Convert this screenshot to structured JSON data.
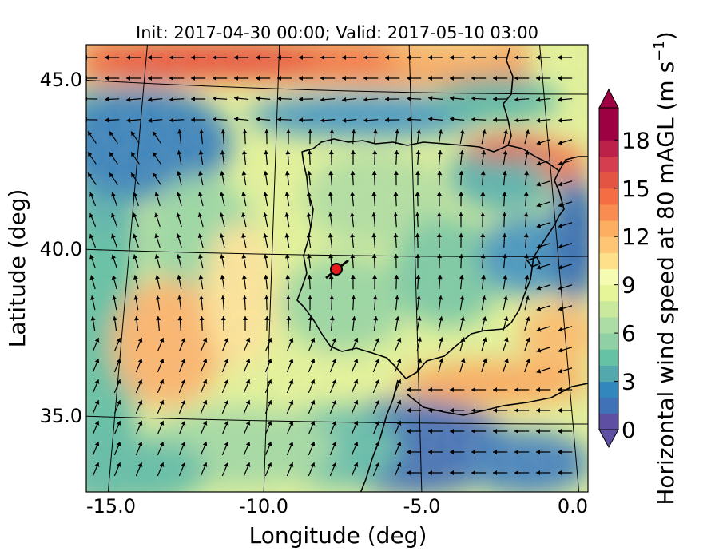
{
  "title": "Init: 2017-04-30 00:00; Valid: 2017-05-10 03:00",
  "xlabel": "Longitude (deg)",
  "ylabel": "Latitude (deg)",
  "colorbar": {
    "label_main": "Horizontal wind speed at 80 mAGL (m s",
    "label_sup": "−1",
    "label_end": ")",
    "ticks": [
      "0",
      "3",
      "6",
      "9",
      "12",
      "15",
      "18"
    ],
    "tick_values": [
      0,
      3,
      6,
      9,
      12,
      15,
      18
    ],
    "range": [
      0,
      20
    ],
    "extend": "both",
    "colormap": "Spectral_r"
  },
  "x_ticks": {
    "labels": [
      "-15.0",
      "-10.0",
      "-5.0",
      "0.0"
    ],
    "values": [
      -15,
      -10,
      -5,
      0
    ]
  },
  "y_ticks": {
    "labels": [
      "45.0",
      "40.0",
      "35.0"
    ],
    "values": [
      45,
      40,
      35
    ]
  },
  "map_extent": {
    "lon": [
      -16,
      0.2
    ],
    "lat": [
      33,
      46
    ]
  },
  "marker": {
    "lon": -7.6,
    "lat": 39.3,
    "color": "#e41a1c"
  },
  "colors": {
    "coast": "#000000",
    "grid": "#000000",
    "arrow": "#000000"
  }
}
